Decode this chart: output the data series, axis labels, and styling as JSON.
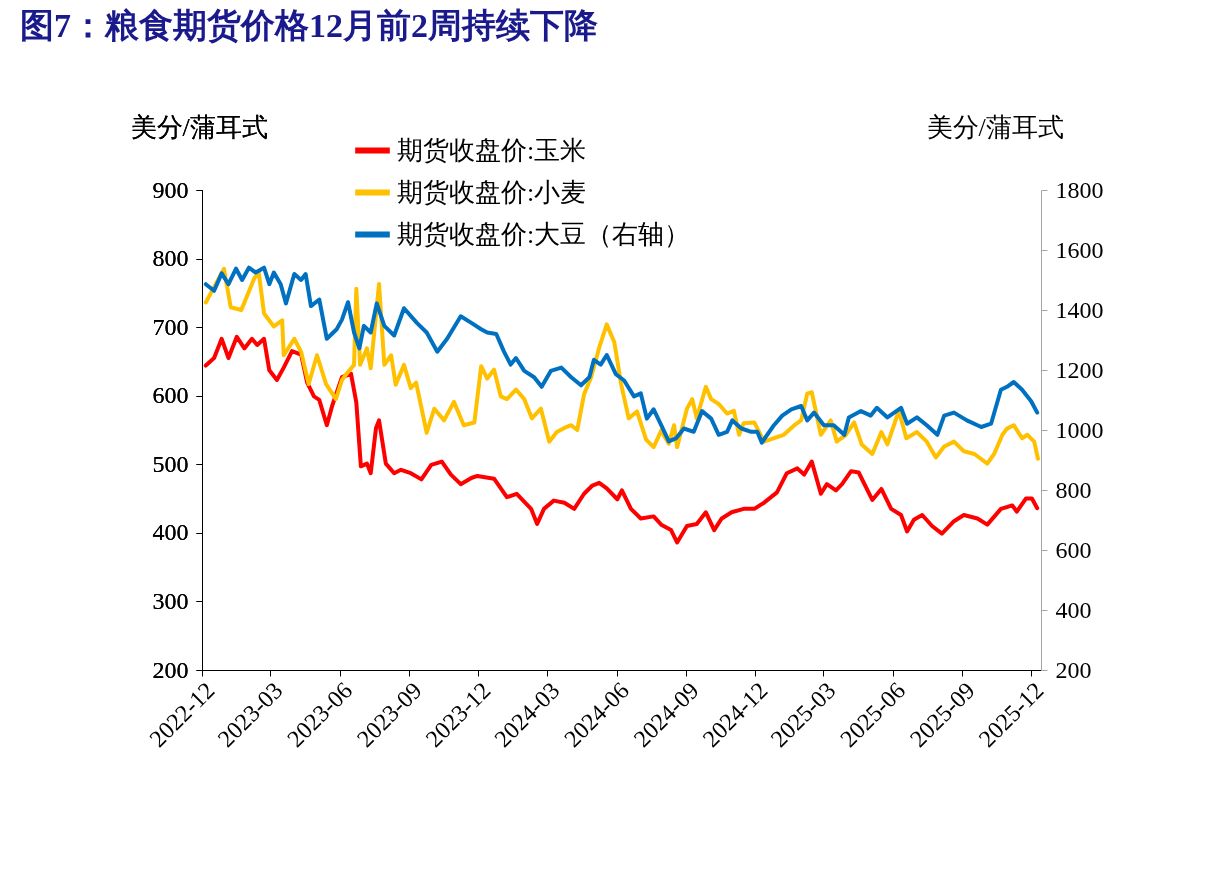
{
  "chart_data": {
    "type": "line",
    "title": "图7：粮食期货价格12月前2周持续下降",
    "ylabel": "美分/蒲耳式",
    "y2label": "美分/蒲耳式",
    "xlim": [
      "2022-12-01",
      "2025-12-14"
    ],
    "xticks": [
      "2022-12",
      "2023-03",
      "2023-06",
      "2023-09",
      "2023-12",
      "2024-03",
      "2024-06",
      "2024-09",
      "2024-12",
      "2025-03",
      "2025-06",
      "2025-09",
      "2025-12"
    ],
    "ylim": [
      200,
      900
    ],
    "yticks": [
      200,
      300,
      400,
      500,
      600,
      700,
      800,
      900
    ],
    "y2lim": [
      200,
      1800
    ],
    "y2ticks": [
      200,
      400,
      600,
      800,
      1000,
      1200,
      1400,
      1600,
      1800
    ],
    "grid": false,
    "legend": "top left",
    "series": [
      {
        "name": "期货收盘价:玉米",
        "color": "#ff0000",
        "x": [
          "2022-12-06",
          "2022-12-17",
          "2022-12-27",
          "2023-01-05",
          "2023-01-16",
          "2023-01-26",
          "2023-02-05",
          "2023-02-12",
          "2023-02-21",
          "2023-02-28",
          "2023-03-10",
          "2023-03-19",
          "2023-03-30",
          "2023-04-11",
          "2023-04-19",
          "2023-04-28",
          "2023-05-05",
          "2023-05-15",
          "2023-05-22",
          "2023-06-04",
          "2023-06-16",
          "2023-06-23",
          "2023-06-29",
          "2023-07-07",
          "2023-07-12",
          "2023-07-19",
          "2023-07-23",
          "2023-08-01",
          "2023-08-12",
          "2023-08-21",
          "2023-09-03",
          "2023-09-17",
          "2023-09-30",
          "2023-10-14",
          "2023-10-26",
          "2023-11-08",
          "2023-11-22",
          "2023-11-30",
          "2023-12-22",
          "2024-01-08",
          "2024-01-21",
          "2024-02-09",
          "2024-02-17",
          "2024-02-26",
          "2024-03-10",
          "2024-03-24",
          "2024-04-06",
          "2024-04-19",
          "2024-04-30",
          "2024-05-09",
          "2024-05-19",
          "2024-06-02",
          "2024-06-08",
          "2024-06-20",
          "2024-07-03",
          "2024-07-20",
          "2024-07-30",
          "2024-08-12",
          "2024-08-20",
          "2024-09-02",
          "2024-09-15",
          "2024-09-27",
          "2024-10-08",
          "2024-10-18",
          "2024-10-31",
          "2024-11-16",
          "2024-11-30",
          "2024-12-13",
          "2024-12-30",
          "2025-01-12",
          "2025-01-26",
          "2025-02-04",
          "2025-02-14",
          "2025-02-26",
          "2025-03-06",
          "2025-03-18",
          "2025-03-26",
          "2025-04-07",
          "2025-04-17",
          "2025-05-05",
          "2025-05-17",
          "2025-05-30",
          "2025-06-12",
          "2025-06-20",
          "2025-06-29",
          "2025-07-10",
          "2025-07-23",
          "2025-08-05",
          "2025-08-21",
          "2025-09-03",
          "2025-09-21",
          "2025-10-04",
          "2025-10-22",
          "2025-11-06",
          "2025-11-12",
          "2025-11-24",
          "2025-12-02",
          "2025-12-09"
        ],
        "values": [
          644,
          655,
          683,
          655,
          686,
          669,
          683,
          674,
          683,
          637,
          623,
          641,
          665,
          660,
          619,
          599,
          594,
          557,
          585,
          627,
          632,
          590,
          497,
          501,
          487,
          553,
          564,
          501,
          487,
          492,
          487,
          478,
          499,
          504,
          485,
          471,
          480,
          483,
          479,
          452,
          457,
          435,
          413,
          435,
          447,
          444,
          435,
          457,
          469,
          473,
          465,
          449,
          462,
          435,
          421,
          424,
          412,
          404,
          386,
          410,
          413,
          430,
          404,
          421,
          430,
          435,
          435,
          444,
          459,
          487,
          494,
          485,
          504,
          457,
          471,
          462,
          471,
          490,
          488,
          448,
          464,
          435,
          426,
          402,
          419,
          426,
          410,
          399,
          417,
          426,
          421,
          412,
          435,
          440,
          431,
          450,
          450,
          436
        ]
      },
      {
        "name": "期货收盘价:小麦",
        "color": "#ffc000",
        "x": [
          "2022-12-06",
          "2022-12-30",
          "2023-01-08",
          "2023-01-22",
          "2023-02-08",
          "2023-02-14",
          "2023-02-21",
          "2023-03-06",
          "2023-03-17",
          "2023-03-19",
          "2023-04-02",
          "2023-04-11",
          "2023-04-21",
          "2023-05-02",
          "2023-05-14",
          "2023-05-27",
          "2023-06-04",
          "2023-06-11",
          "2023-06-20",
          "2023-06-23",
          "2023-06-28",
          "2023-07-07",
          "2023-07-12",
          "2023-07-23",
          "2023-07-30",
          "2023-08-08",
          "2023-08-14",
          "2023-08-25",
          "2023-09-03",
          "2023-09-10",
          "2023-09-24",
          "2023-10-04",
          "2023-10-17",
          "2023-10-30",
          "2023-11-12",
          "2023-11-26",
          "2023-12-05",
          "2023-12-13",
          "2023-12-22",
          "2023-12-31",
          "2024-01-08",
          "2024-01-20",
          "2024-01-31",
          "2024-02-10",
          "2024-02-22",
          "2024-03-04",
          "2024-03-14",
          "2024-03-24",
          "2024-04-02",
          "2024-04-10",
          "2024-04-19",
          "2024-04-28",
          "2024-05-09",
          "2024-05-19",
          "2024-05-29",
          "2024-06-07",
          "2024-06-17",
          "2024-06-28",
          "2024-07-10",
          "2024-07-20",
          "2024-07-30",
          "2024-08-09",
          "2024-08-16",
          "2024-08-20",
          "2024-09-02",
          "2024-09-09",
          "2024-09-15",
          "2024-09-27",
          "2024-10-04",
          "2024-10-14",
          "2024-10-25",
          "2024-11-03",
          "2024-11-10",
          "2024-11-16",
          "2024-11-30",
          "2024-12-13",
          "2024-12-26",
          "2025-01-08",
          "2025-01-22",
          "2025-01-31",
          "2025-02-08",
          "2025-02-14",
          "2025-02-26",
          "2025-03-11",
          "2025-03-19",
          "2025-03-31",
          "2025-04-11",
          "2025-04-21",
          "2025-05-05",
          "2025-05-17",
          "2025-05-25",
          "2025-06-09",
          "2025-06-19",
          "2025-07-03",
          "2025-07-16",
          "2025-07-28",
          "2025-08-08",
          "2025-08-21",
          "2025-09-03",
          "2025-09-17",
          "2025-10-04",
          "2025-10-13",
          "2025-10-24",
          "2025-10-30",
          "2025-11-08",
          "2025-11-19",
          "2025-11-26",
          "2025-12-05",
          "2025-12-10"
        ],
        "values": [
          736,
          785,
          729,
          725,
          771,
          780,
          720,
          701,
          710,
          659,
          683,
          664,
          617,
          659,
          617,
          595,
          623,
          633,
          645,
          756,
          645,
          669,
          640,
          763,
          645,
          659,
          616,
          645,
          611,
          619,
          546,
          581,
          564,
          591,
          557,
          561,
          643,
          625,
          638,
          599,
          595,
          609,
          595,
          567,
          581,
          533,
          547,
          553,
          557,
          550,
          602,
          626,
          670,
          704,
          678,
          617,
          567,
          577,
          536,
          525,
          549,
          530,
          557,
          525,
          581,
          595,
          567,
          613,
          595,
          588,
          574,
          578,
          543,
          560,
          561,
          533,
          538,
          543,
          557,
          564,
          603,
          605,
          543,
          564,
          533,
          543,
          561,
          529,
          515,
          547,
          529,
          578,
          538,
          547,
          533,
          510,
          526,
          533,
          519,
          515,
          501,
          515,
          543,
          552,
          557,
          538,
          543,
          533,
          508
        ]
      },
      {
        "name": "期货收盘价:大豆（右轴）",
        "color": "#0070c0",
        "axis": "y2",
        "x": [
          "2022-12-06",
          "2022-12-17",
          "2022-12-27",
          "2023-01-05",
          "2023-01-15",
          "2023-01-23",
          "2023-02-01",
          "2023-02-10",
          "2023-02-21",
          "2023-02-28",
          "2023-03-06",
          "2023-03-15",
          "2023-03-22",
          "2023-04-02",
          "2023-04-11",
          "2023-04-17",
          "2023-04-24",
          "2023-05-05",
          "2023-05-15",
          "2023-05-28",
          "2023-06-04",
          "2023-06-12",
          "2023-06-20",
          "2023-06-27",
          "2023-07-03",
          "2023-07-12",
          "2023-07-20",
          "2023-07-30",
          "2023-08-12",
          "2023-08-25",
          "2023-09-11",
          "2023-09-24",
          "2023-10-08",
          "2023-10-21",
          "2023-11-08",
          "2023-11-22",
          "2023-12-05",
          "2023-12-13",
          "2023-12-25",
          "2024-01-04",
          "2024-01-13",
          "2024-01-20",
          "2024-01-31",
          "2024-02-13",
          "2024-02-23",
          "2024-03-06",
          "2024-03-20",
          "2024-04-02",
          "2024-04-15",
          "2024-04-26",
          "2024-05-02",
          "2024-05-11",
          "2024-05-19",
          "2024-05-31",
          "2024-06-11",
          "2024-06-24",
          "2024-07-03",
          "2024-07-11",
          "2024-07-20",
          "2024-07-30",
          "2024-08-09",
          "2024-08-19",
          "2024-08-29",
          "2024-09-11",
          "2024-09-22",
          "2024-10-04",
          "2024-10-14",
          "2024-10-25",
          "2024-11-01",
          "2024-11-13",
          "2024-11-26",
          "2024-12-04",
          "2024-12-10",
          "2024-12-26",
          "2025-01-06",
          "2025-01-18",
          "2025-01-31",
          "2025-02-08",
          "2025-02-17",
          "2025-03-02",
          "2025-03-15",
          "2025-03-29",
          "2025-04-04",
          "2025-04-20",
          "2025-05-03",
          "2025-05-11",
          "2025-05-25",
          "2025-06-12",
          "2025-06-20",
          "2025-07-03",
          "2025-07-16",
          "2025-07-30",
          "2025-08-08",
          "2025-08-21",
          "2025-09-07",
          "2025-09-26",
          "2025-10-09",
          "2025-10-22",
          "2025-10-30",
          "2025-11-08",
          "2025-11-19",
          "2025-12-01",
          "2025-12-09"
        ],
        "values": [
          1486,
          1464,
          1522,
          1486,
          1538,
          1500,
          1541,
          1525,
          1541,
          1486,
          1525,
          1486,
          1422,
          1520,
          1500,
          1520,
          1413,
          1435,
          1304,
          1336,
          1368,
          1426,
          1325,
          1272,
          1347,
          1325,
          1422,
          1347,
          1315,
          1406,
          1357,
          1325,
          1261,
          1304,
          1379,
          1357,
          1336,
          1325,
          1320,
          1262,
          1218,
          1240,
          1197,
          1176,
          1144,
          1197,
          1208,
          1176,
          1149,
          1176,
          1234,
          1218,
          1250,
          1186,
          1165,
          1112,
          1122,
          1038,
          1069,
          1016,
          962,
          973,
          1005,
          994,
          1063,
          1038,
          984,
          994,
          1032,
          1005,
          994,
          994,
          958,
          1016,
          1048,
          1069,
          1080,
          1032,
          1058,
          1016,
          1016,
          984,
          1042,
          1063,
          1048,
          1074,
          1042,
          1074,
          1021,
          1042,
          1016,
          984,
          1048,
          1058,
          1032,
          1010,
          1021,
          1134,
          1144,
          1160,
          1134,
          1096,
          1058
        ]
      }
    ]
  }
}
